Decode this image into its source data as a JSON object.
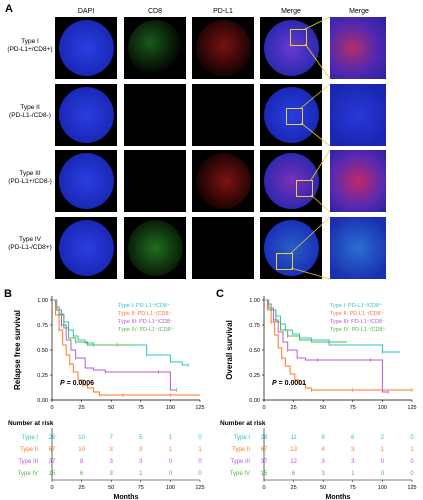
{
  "panel_a": {
    "letter": "A",
    "columns": [
      "DAPI",
      "CD8",
      "PD-L1",
      "Merge",
      "Merge"
    ],
    "rows": [
      {
        "type": "Type I",
        "markers": "(PD-L1+/CD8+)"
      },
      {
        "type": "Type II",
        "markers": "(PD-L1-/CD8-)"
      },
      {
        "type": "Type  III",
        "markers": "(PD-L1+/CD8-)"
      },
      {
        "type": "Type IV",
        "markers": "(PD-L1-/CD8+)"
      }
    ],
    "colors": {
      "dapi": "#1a2fd6",
      "cd8": "#2fd62f",
      "pdl1": "#d61a1a",
      "inset_box": "#e8d22a"
    }
  },
  "chart_data": [
    {
      "type": "line",
      "letter": "B",
      "ylabel": "Relapse free survival",
      "xlabel": "Months",
      "xlim": [
        0,
        125
      ],
      "ylim": [
        0,
        1.0
      ],
      "xticks": [
        "0",
        "25",
        "50",
        "75",
        "100",
        "125"
      ],
      "yticks": [
        "0.00",
        "0.25",
        "0.50",
        "0.75",
        "1.00"
      ],
      "p_label": "P",
      "p_value": "= 0.0006",
      "legend": [
        "Type I: PD-L1⁺/CD8⁺",
        "Type II: PD-L1⁻/CD8⁻",
        "Type III: PD-L1⁺/CD8⁻",
        "Type IV: PD-L1⁻/CD8⁺"
      ],
      "series": [
        {
          "x": [
            0,
            3,
            6,
            10,
            14,
            18,
            22,
            28,
            35,
            45,
            60,
            80,
            100,
            110,
            115
          ],
          "y": [
            1.0,
            0.93,
            0.86,
            0.78,
            0.7,
            0.64,
            0.6,
            0.57,
            0.55,
            0.55,
            0.55,
            0.45,
            0.38,
            0.35,
            0.35
          ]
        },
        {
          "x": [
            0,
            3,
            6,
            9,
            12,
            15,
            18,
            22,
            26,
            30,
            35,
            40,
            45,
            50,
            60,
            75,
            95,
            100,
            125
          ],
          "y": [
            1.0,
            0.85,
            0.7,
            0.55,
            0.45,
            0.36,
            0.28,
            0.2,
            0.15,
            0.12,
            0.08,
            0.05,
            0.05,
            0.05,
            0.05,
            0.05,
            0.05,
            0.05,
            0.05
          ]
        },
        {
          "x": [
            0,
            4,
            8,
            12,
            16,
            20,
            28,
            35,
            45,
            60,
            75,
            90,
            98,
            100,
            105
          ],
          "y": [
            1.0,
            0.9,
            0.75,
            0.6,
            0.5,
            0.42,
            0.32,
            0.3,
            0.28,
            0.28,
            0.28,
            0.28,
            0.28,
            0.1,
            0.1
          ]
        },
        {
          "x": [
            0,
            3,
            6,
            10,
            14,
            20,
            30,
            40,
            55,
            70
          ],
          "y": [
            1.0,
            0.93,
            0.85,
            0.72,
            0.62,
            0.58,
            0.55,
            0.55,
            0.55,
            0.55
          ]
        }
      ],
      "risk_title": "Number at risk",
      "risk_labels": [
        "Type I",
        "Type II",
        "Type III",
        "Type IV"
      ],
      "risk": [
        [
          "28",
          "10",
          "7",
          "5",
          "1",
          "0"
        ],
        [
          "67",
          "10",
          "3",
          "3",
          "1",
          "1"
        ],
        [
          "37",
          "8",
          "3",
          "3",
          "0",
          "0"
        ],
        [
          "15",
          "6",
          "3",
          "1",
          "0",
          "0"
        ]
      ]
    },
    {
      "type": "line",
      "letter": "C",
      "ylabel": "Overall survival",
      "xlabel": "Months",
      "xlim": [
        0,
        125
      ],
      "ylim": [
        0,
        1.0
      ],
      "xticks": [
        "0",
        "25",
        "50",
        "75",
        "100",
        "125"
      ],
      "yticks": [
        "0.00",
        "0.25",
        "0.50",
        "0.75",
        "1.00"
      ],
      "p_label": "P",
      "p_value": "= 0.0001",
      "legend": [
        "Type I: PD-L1⁺/CD8⁺",
        "Type II: PD-L1⁻/CD8⁻",
        "Type III: PD-L1⁺/CD8⁻",
        "Type IV: PD-L1⁻/CD8⁺"
      ],
      "series": [
        {
          "x": [
            0,
            3,
            6,
            10,
            14,
            18,
            24,
            30,
            40,
            55,
            70,
            100,
            115
          ],
          "y": [
            1.0,
            0.96,
            0.9,
            0.84,
            0.76,
            0.7,
            0.66,
            0.62,
            0.6,
            0.55,
            0.55,
            0.48,
            0.48
          ]
        },
        {
          "x": [
            0,
            3,
            6,
            9,
            12,
            15,
            18,
            22,
            26,
            30,
            35,
            40,
            50,
            60,
            75,
            95,
            100,
            125
          ],
          "y": [
            1.0,
            0.9,
            0.78,
            0.65,
            0.52,
            0.42,
            0.34,
            0.26,
            0.2,
            0.16,
            0.12,
            0.1,
            0.1,
            0.1,
            0.1,
            0.1,
            0.1,
            0.1
          ]
        },
        {
          "x": [
            0,
            4,
            8,
            12,
            16,
            20,
            28,
            35,
            45,
            60,
            75,
            90,
            98,
            100,
            105
          ],
          "y": [
            1.0,
            0.92,
            0.8,
            0.68,
            0.58,
            0.5,
            0.42,
            0.4,
            0.4,
            0.4,
            0.4,
            0.4,
            0.4,
            0.08,
            0.08
          ]
        },
        {
          "x": [
            0,
            3,
            6,
            10,
            14,
            20,
            30,
            40,
            55,
            70
          ],
          "y": [
            1.0,
            0.96,
            0.9,
            0.78,
            0.7,
            0.64,
            0.6,
            0.58,
            0.58,
            0.58
          ]
        }
      ],
      "risk_title": "Number at risk",
      "risk_labels": [
        "Type I",
        "Type II",
        "Type III",
        "Type IV"
      ],
      "risk": [
        [
          "28",
          "11",
          "8",
          "6",
          "2",
          "0"
        ],
        [
          "67",
          "13",
          "4",
          "3",
          "1",
          "1"
        ],
        [
          "37",
          "12",
          "3",
          "3",
          "0",
          "0"
        ],
        [
          "15",
          "6",
          "3",
          "1",
          "0",
          "0"
        ]
      ]
    }
  ],
  "series_colors": [
    "#29c4c4",
    "#ff7722",
    "#b85ad6",
    "#55b84a"
  ]
}
